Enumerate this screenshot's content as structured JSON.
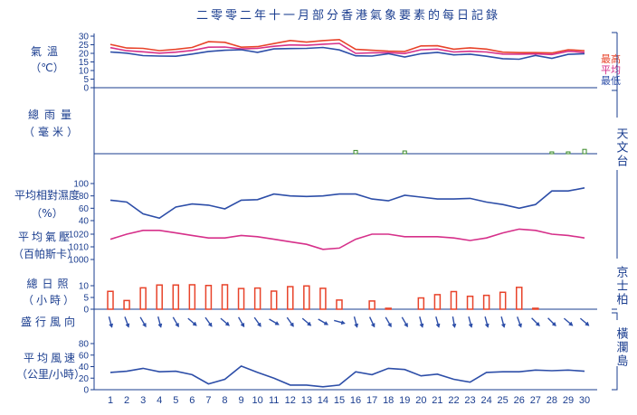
{
  "title": "二零零二年十一月部分香港氣象要素的每日記錄",
  "colors": {
    "axis": "#1a3d8f",
    "max": "#e8432a",
    "mean": "#d6308a",
    "min": "#2d4ea8",
    "rain": "#3a8a2a",
    "sun_bar": "#e8432a",
    "humidity": "#2d4ea8",
    "pressure": "#d6308a",
    "wind": "#2d4ea8",
    "arrow": "#2d4ea8"
  },
  "labels": {
    "temperature": [
      "氣溫",
      "（℃）"
    ],
    "rainfall": [
      "總雨量",
      "（毫米）"
    ],
    "humidity": [
      "平均相對濕度",
      "（%）"
    ],
    "pressure": [
      "平均氣壓",
      "（百帕斯卡）"
    ],
    "sunshine": [
      "總日照",
      "（小時）"
    ],
    "wind_dir": [
      "盛行風向"
    ],
    "wind_speed": [
      "平均風速",
      "（公里/小時）"
    ],
    "legend": [
      "最高",
      "平均",
      "最低"
    ],
    "station_hko": "天文台",
    "station_kp": "京士柏",
    "station_wgl": "橫瀾島"
  },
  "chart_data": {
    "type": "line",
    "x": [
      1,
      2,
      3,
      4,
      5,
      6,
      7,
      8,
      9,
      10,
      11,
      12,
      13,
      14,
      15,
      16,
      17,
      18,
      19,
      20,
      21,
      22,
      23,
      24,
      25,
      26,
      27,
      28,
      29,
      30
    ],
    "panels": [
      {
        "id": "temperature",
        "ylim": [
          0,
          30
        ],
        "yticks": [
          0,
          5,
          10,
          15,
          20,
          25,
          30
        ],
        "series": [
          {
            "name": "最高",
            "values": [
              25.2,
              23.1,
              22.9,
              21.6,
              22.3,
              23.4,
              26.8,
              26.4,
              23.6,
              23.9,
              25.7,
              27.5,
              26.5,
              27.4,
              28.0,
              22.3,
              21.8,
              21.3,
              21.1,
              24.3,
              24.4,
              22.4,
              23.2,
              22.5,
              20.7,
              20.4,
              20.4,
              20.2,
              22.1,
              21.6
            ]
          },
          {
            "name": "平均",
            "values": [
              23.3,
              21.5,
              20.9,
              20.1,
              20.7,
              21.7,
              23.6,
              23.7,
              22.6,
              22.9,
              24.1,
              24.9,
              24.7,
              25.3,
              25.8,
              20.0,
              20.3,
              20.4,
              19.9,
              22.1,
              22.5,
              20.8,
              21.2,
              20.8,
              19.6,
              19.5,
              19.7,
              19.3,
              21.2,
              20.6
            ]
          },
          {
            "name": "最低",
            "values": [
              20.8,
              20.1,
              18.7,
              18.4,
              18.3,
              19.6,
              21.1,
              21.8,
              22.1,
              20.6,
              22.6,
              22.8,
              22.9,
              23.4,
              22.0,
              18.6,
              18.4,
              19.8,
              17.9,
              19.8,
              20.6,
              19.1,
              19.5,
              18.3,
              16.9,
              16.6,
              18.8,
              17.1,
              19.4,
              19.8
            ]
          }
        ]
      },
      {
        "id": "rainfall",
        "values": [
          0,
          0,
          0,
          0,
          0,
          0,
          0,
          0,
          0,
          0,
          0,
          0,
          0,
          0,
          0,
          0.6,
          0,
          0,
          0.5,
          0,
          0,
          0,
          0,
          0,
          0,
          0,
          0,
          0.3,
          0.2,
          0.8
        ]
      },
      {
        "id": "humidity",
        "ylim": [
          40,
          100
        ],
        "yticks": [
          40,
          60,
          80,
          100
        ],
        "values": [
          73,
          70,
          51,
          44,
          62,
          67,
          65,
          59,
          73,
          74,
          83,
          80,
          79,
          80,
          83,
          83,
          75,
          72,
          81,
          78,
          75,
          75,
          76,
          70,
          66,
          60,
          66,
          88,
          88,
          93
        ]
      },
      {
        "id": "pressure",
        "ylim": [
          1000,
          1020
        ],
        "yticks": [
          1000,
          1010,
          1020
        ],
        "values": [
          1016,
          1020,
          1023,
          1023,
          1021,
          1019,
          1017,
          1017,
          1019,
          1018,
          1016,
          1014,
          1012,
          1008,
          1009,
          1016,
          1020,
          1020,
          1018,
          1018,
          1018,
          1017,
          1015,
          1017,
          1021,
          1024,
          1023,
          1020,
          1019,
          1017
        ]
      },
      {
        "id": "sunshine",
        "ylim": [
          0,
          10
        ],
        "yticks": [
          0,
          5,
          10
        ],
        "values": [
          7.6,
          3.7,
          9.1,
          10.3,
          10.3,
          10.4,
          10.1,
          10.4,
          8.8,
          9.0,
          7.7,
          9.6,
          9.9,
          8.9,
          3.9,
          0,
          3.5,
          0.4,
          0,
          4.8,
          6.2,
          7.5,
          5.5,
          5.9,
          7.2,
          9.3,
          0.4,
          0,
          0,
          0
        ]
      },
      {
        "id": "wind_dir",
        "degrees": [
          165,
          160,
          150,
          165,
          150,
          130,
          145,
          130,
          150,
          145,
          120,
          145,
          130,
          120,
          105,
          165,
          155,
          150,
          150,
          165,
          165,
          170,
          165,
          165,
          165,
          160,
          135,
          135,
          130,
          130
        ]
      },
      {
        "id": "wind_speed",
        "ylim": [
          0,
          80
        ],
        "yticks": [
          0,
          20,
          40,
          60,
          80
        ],
        "values": [
          30,
          32,
          37,
          31,
          32,
          26,
          10,
          18,
          41,
          30,
          20,
          8,
          8,
          5,
          8,
          31,
          26,
          37,
          35,
          24,
          27,
          18,
          13,
          30,
          31,
          31,
          34,
          33,
          34,
          32
        ]
      }
    ]
  }
}
